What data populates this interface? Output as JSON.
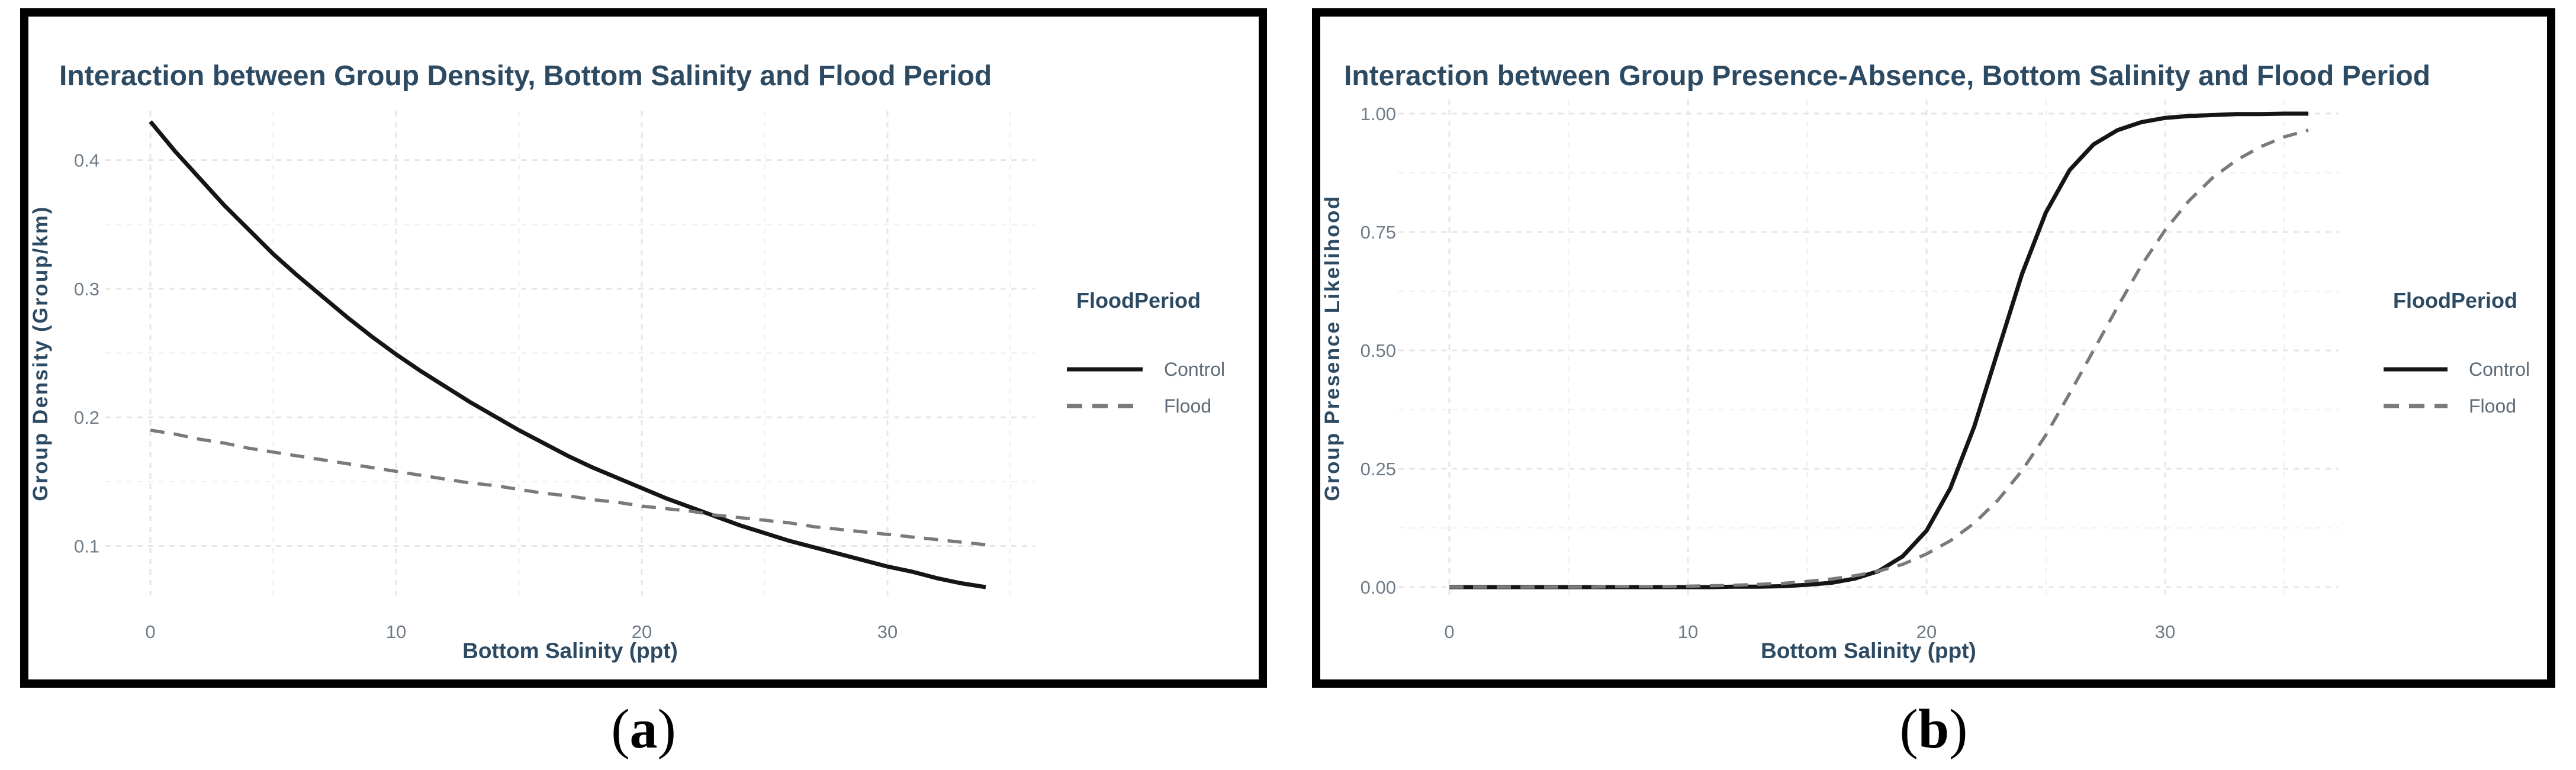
{
  "figure": {
    "captions": [
      {
        "open": "(",
        "letter": "a",
        "close": ")"
      },
      {
        "open": "(",
        "letter": "b",
        "close": ")"
      }
    ]
  },
  "colors": {
    "title_text": "#2d4a63",
    "axis_label_text": "#2d4a63",
    "tick_text": "#6e7b87",
    "legend_title_text": "#2d4a63",
    "legend_label_text": "#5f6b76",
    "control_line": "#151515",
    "flood_line": "#7a7a7a",
    "grid_major": "#e6e6e6",
    "grid_minor": "#f2f2f2",
    "panel_border": "#000000",
    "background": "#ffffff"
  },
  "chart_data": [
    {
      "type": "line",
      "title": "Interaction between Group Density, Bottom Salinity and Flood Period",
      "xlabel": "Bottom Salinity (ppt)",
      "ylabel": "Group Density (Group/km)",
      "xlim": [
        -1.8,
        36.1
      ],
      "ylim": [
        0.062,
        0.438
      ],
      "x_ticks": [
        0,
        10,
        20,
        30
      ],
      "x_tick_labels": [
        "0",
        "10",
        "20",
        "30"
      ],
      "x_minor": [
        5,
        15,
        25,
        35
      ],
      "y_ticks": [
        0.1,
        0.2,
        0.3,
        0.4
      ],
      "y_tick_labels": [
        "0.1",
        "0.2",
        "0.3",
        "0.4"
      ],
      "y_minor": [
        0.15,
        0.25,
        0.35
      ],
      "grid": {
        "style": "dashed",
        "major": true,
        "minor": true
      },
      "legend": {
        "title": "FloodPeriod",
        "position": "right",
        "entries": [
          {
            "label": "Control",
            "style": "solid",
            "color": "#151515"
          },
          {
            "label": "Flood",
            "style": "dashed",
            "color": "#7a7a7a"
          }
        ]
      },
      "series": [
        {
          "name": "Control",
          "style": "solid",
          "color": "#151515",
          "x": [
            0,
            1,
            2,
            3,
            4,
            5,
            6,
            7,
            8,
            9,
            10,
            11,
            12,
            13,
            14,
            15,
            16,
            17,
            18,
            19,
            20,
            21,
            22,
            23,
            24,
            25,
            26,
            27,
            28,
            29,
            30,
            31,
            32,
            33,
            34
          ],
          "y": [
            0.43,
            0.407,
            0.386,
            0.365,
            0.346,
            0.327,
            0.31,
            0.294,
            0.278,
            0.263,
            0.249,
            0.236,
            0.224,
            0.212,
            0.201,
            0.19,
            0.18,
            0.17,
            0.161,
            0.153,
            0.145,
            0.137,
            0.13,
            0.123,
            0.116,
            0.11,
            0.104,
            0.099,
            0.094,
            0.089,
            0.084,
            0.08,
            0.075,
            0.071,
            0.068
          ]
        },
        {
          "name": "Flood",
          "style": "dashed",
          "color": "#7a7a7a",
          "x": [
            0,
            1,
            2,
            3,
            4,
            5,
            6,
            7,
            8,
            9,
            10,
            11,
            12,
            13,
            14,
            15,
            16,
            17,
            18,
            19,
            20,
            21,
            22,
            23,
            24,
            25,
            26,
            27,
            28,
            29,
            30,
            31,
            32,
            33,
            34
          ],
          "y": [
            0.19,
            0.187,
            0.183,
            0.18,
            0.176,
            0.173,
            0.17,
            0.167,
            0.164,
            0.161,
            0.158,
            0.155,
            0.152,
            0.149,
            0.147,
            0.144,
            0.141,
            0.139,
            0.136,
            0.134,
            0.131,
            0.129,
            0.127,
            0.124,
            0.122,
            0.12,
            0.118,
            0.115,
            0.113,
            0.111,
            0.109,
            0.107,
            0.105,
            0.103,
            0.101
          ]
        }
      ]
    },
    {
      "type": "line",
      "title": "Interaction between Group Presence-Absence, Bottom Salinity and Flood Period",
      "xlabel": "Bottom Salinity (ppt)",
      "ylabel": "Group Presence Likelihood",
      "xlim": [
        -1.74,
        37.74
      ],
      "ylim": [
        -0.02,
        1.03
      ],
      "x_ticks": [
        0,
        10,
        20,
        30
      ],
      "x_tick_labels": [
        "0",
        "10",
        "20",
        "30"
      ],
      "x_minor": [
        5,
        15,
        25,
        35
      ],
      "y_ticks": [
        1.0,
        0.75,
        0.5,
        0.25,
        0.0
      ],
      "y_tick_labels": [
        "1.00",
        "0.75",
        "0.50",
        "0.25",
        "0.00"
      ],
      "y_minor": [
        0.875,
        0.625,
        0.375,
        0.125
      ],
      "grid": {
        "style": "dashed",
        "major": true,
        "minor": true
      },
      "legend": {
        "title": "FloodPeriod",
        "position": "right",
        "entries": [
          {
            "label": "Control",
            "style": "solid",
            "color": "#151515"
          },
          {
            "label": "Flood",
            "style": "dashed",
            "color": "#7a7a7a"
          }
        ]
      },
      "series": [
        {
          "name": "Control",
          "style": "solid",
          "color": "#151515",
          "x": [
            0,
            1,
            2,
            3,
            4,
            5,
            6,
            7,
            8,
            9,
            10,
            11,
            12,
            13,
            14,
            15,
            16,
            17,
            18,
            19,
            20,
            21,
            22,
            23,
            24,
            25,
            26,
            27,
            28,
            29,
            30,
            31,
            32,
            33,
            34,
            35,
            36
          ],
          "y": [
            0.0,
            0.0,
            0.0,
            0.0,
            0.0,
            0.0,
            0.0,
            0.0,
            0.0,
            0.0,
            0.0,
            0.0,
            0.001,
            0.001,
            0.002,
            0.005,
            0.009,
            0.018,
            0.034,
            0.065,
            0.119,
            0.209,
            0.339,
            0.5,
            0.661,
            0.791,
            0.881,
            0.935,
            0.965,
            0.982,
            0.991,
            0.995,
            0.997,
            0.999,
            0.999,
            1.0,
            1.0
          ]
        },
        {
          "name": "Flood",
          "style": "dashed",
          "color": "#7a7a7a",
          "x": [
            0,
            1,
            2,
            3,
            4,
            5,
            6,
            7,
            8,
            9,
            10,
            11,
            12,
            13,
            14,
            15,
            16,
            17,
            18,
            19,
            20,
            21,
            22,
            23,
            24,
            25,
            26,
            27,
            28,
            29,
            30,
            31,
            32,
            33,
            34,
            35,
            36
          ],
          "y": [
            0.0,
            0.0,
            0.0,
            0.0,
            0.0,
            0.0,
            0.0,
            0.001,
            0.001,
            0.001,
            0.002,
            0.003,
            0.004,
            0.006,
            0.008,
            0.012,
            0.017,
            0.024,
            0.034,
            0.048,
            0.07,
            0.098,
            0.135,
            0.184,
            0.246,
            0.321,
            0.409,
            0.5,
            0.591,
            0.679,
            0.754,
            0.816,
            0.865,
            0.902,
            0.93,
            0.951,
            0.965
          ]
        }
      ]
    }
  ]
}
